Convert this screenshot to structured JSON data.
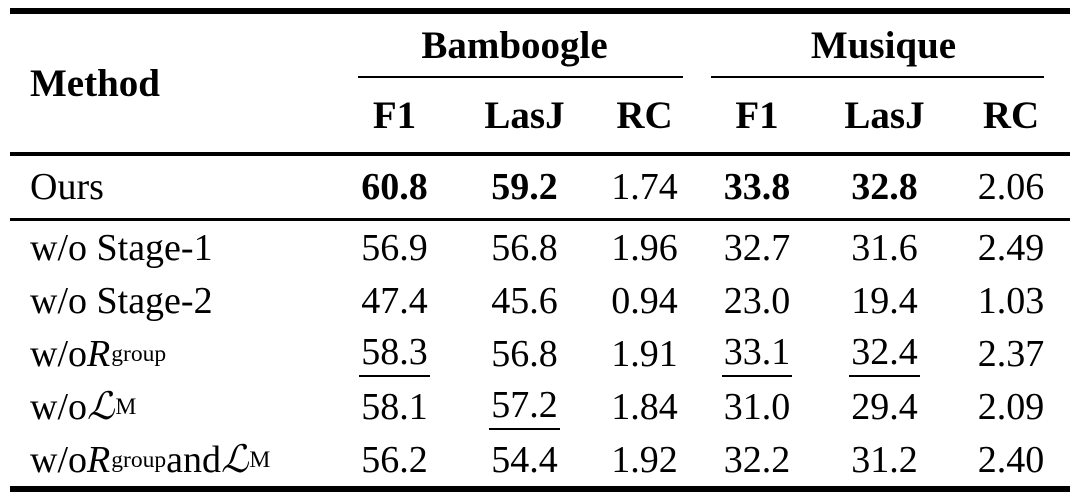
{
  "colors": {
    "background": "#ffffff",
    "text": "#000000",
    "rule": "#000000"
  },
  "table": {
    "header": {
      "method": "Method",
      "groups": [
        {
          "label": "Bamboogle"
        },
        {
          "label": "Musique"
        }
      ],
      "sub": [
        "F1",
        "LasJ",
        "RC",
        "F1",
        "LasJ",
        "RC"
      ]
    },
    "rows": [
      {
        "method": {
          "prefix": "Ours"
        },
        "cells": [
          {
            "v": "60.8",
            "s": "bold"
          },
          {
            "v": "59.2",
            "s": "bold"
          },
          {
            "v": "1.74",
            "s": "plain"
          },
          {
            "v": "33.8",
            "s": "bold"
          },
          {
            "v": "32.8",
            "s": "bold"
          },
          {
            "v": "2.06",
            "s": "plain"
          }
        ]
      },
      {
        "method": {
          "prefix": "w/o Stage-1"
        },
        "cells": [
          {
            "v": "56.9",
            "s": "plain"
          },
          {
            "v": "56.8",
            "s": "plain"
          },
          {
            "v": "1.96",
            "s": "plain"
          },
          {
            "v": "32.7",
            "s": "plain"
          },
          {
            "v": "31.6",
            "s": "plain"
          },
          {
            "v": "2.49",
            "s": "plain"
          }
        ]
      },
      {
        "method": {
          "prefix": "w/o Stage-2"
        },
        "cells": [
          {
            "v": "47.4",
            "s": "plain"
          },
          {
            "v": "45.6",
            "s": "plain"
          },
          {
            "v": "0.94",
            "s": "plain"
          },
          {
            "v": "23.0",
            "s": "plain"
          },
          {
            "v": "19.4",
            "s": "plain"
          },
          {
            "v": "1.03",
            "s": "plain"
          }
        ]
      },
      {
        "method": {
          "prefix": "w/o ",
          "sym1": "R",
          "sub1": "group"
        },
        "cells": [
          {
            "v": "58.3",
            "s": "underline"
          },
          {
            "v": "56.8",
            "s": "plain"
          },
          {
            "v": "1.91",
            "s": "plain"
          },
          {
            "v": "33.1",
            "s": "underline"
          },
          {
            "v": "32.4",
            "s": "underline"
          },
          {
            "v": "2.37",
            "s": "plain"
          }
        ]
      },
      {
        "method": {
          "prefix": "w/o ",
          "sym1": "ℒ",
          "sub1": "M"
        },
        "cells": [
          {
            "v": "58.1",
            "s": "plain"
          },
          {
            "v": "57.2",
            "s": "underline"
          },
          {
            "v": "1.84",
            "s": "plain"
          },
          {
            "v": "31.0",
            "s": "plain"
          },
          {
            "v": "29.4",
            "s": "plain"
          },
          {
            "v": "2.09",
            "s": "plain"
          }
        ]
      },
      {
        "method": {
          "prefix": "w/o ",
          "sym1": "R",
          "sub1": "group",
          "mid": " and ",
          "sym2": "ℒ",
          "sub2": "M"
        },
        "cells": [
          {
            "v": "56.2",
            "s": "plain"
          },
          {
            "v": "54.4",
            "s": "plain"
          },
          {
            "v": "1.92",
            "s": "plain"
          },
          {
            "v": "32.2",
            "s": "plain"
          },
          {
            "v": "31.2",
            "s": "plain"
          },
          {
            "v": "2.40",
            "s": "plain"
          }
        ]
      }
    ]
  }
}
